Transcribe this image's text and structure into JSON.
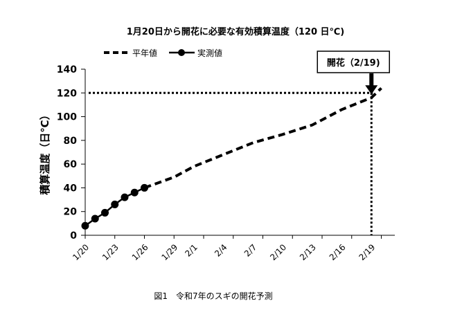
{
  "chart_data": {
    "type": "line",
    "title": "1月20日から開花に必要な有効積算温度（120 日℃)",
    "ylabel": "積算温度（日℃）",
    "xlabel": "",
    "ylim": [
      0,
      140
    ],
    "yticks": [
      0,
      20,
      40,
      60,
      80,
      100,
      120,
      140
    ],
    "x_tick_labels": [
      "1/20",
      "1/23",
      "1/26",
      "1/29",
      "2/1",
      "2/4",
      "2/7",
      "2/10",
      "2/13",
      "2/16",
      "2/19"
    ],
    "x_range": [
      "1/20",
      "2/20"
    ],
    "legend": {
      "placement": "top-left",
      "entries": [
        "平年値",
        "実測値"
      ]
    },
    "series": [
      {
        "name": "平年値",
        "style": "dashed",
        "x": [
          "1/26",
          "1/29",
          "2/1",
          "2/4",
          "2/7",
          "2/10",
          "2/13",
          "2/16",
          "2/19",
          "2/20"
        ],
        "values": [
          40,
          49,
          58,
          68,
          78,
          85,
          93,
          106,
          116,
          124
        ]
      },
      {
        "name": "実測値",
        "style": "solid-markers",
        "x": [
          "1/20",
          "1/21",
          "1/22",
          "1/23",
          "1/24",
          "1/25",
          "1/26"
        ],
        "values": [
          8,
          14,
          19,
          26,
          32,
          36,
          40
        ]
      }
    ],
    "reference_line": {
      "y": 120,
      "style": "dotted"
    },
    "vertical_line": {
      "x": "2/19",
      "style": "dotted"
    },
    "annotation": {
      "text": "開花（2/19)",
      "x": "2/19"
    },
    "caption": "図1　令和7年のスギの開花予測",
    "grid": false
  }
}
